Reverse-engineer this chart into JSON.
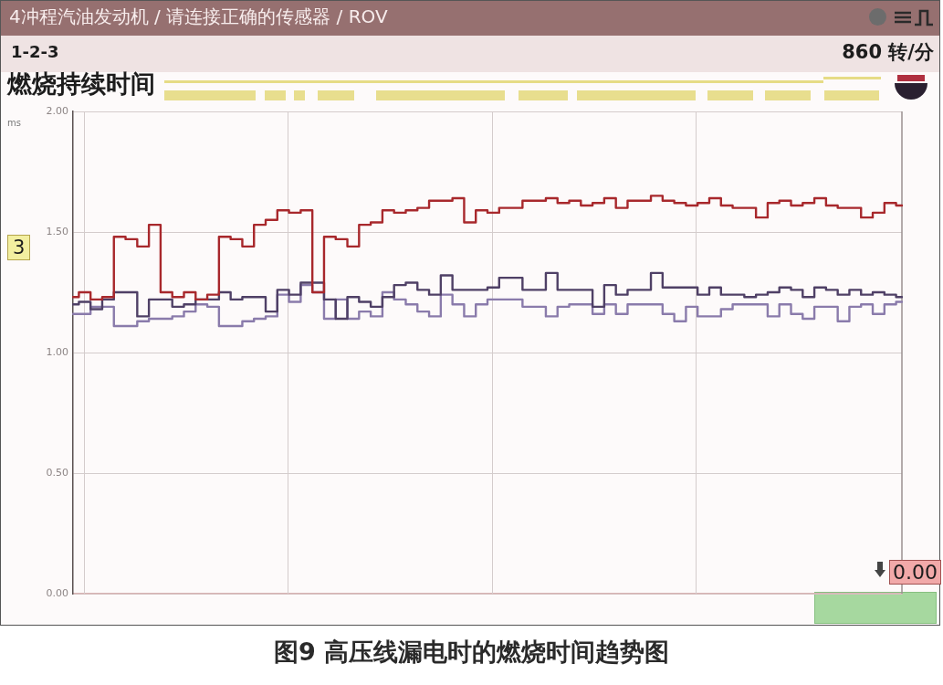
{
  "chart_data": {
    "type": "step",
    "title": "燃烧持续时间",
    "ylabel": "ms",
    "annotations": [
      "4冲程汽油发动机 / 请连接正确的传感器 / ROV",
      "1-2-3",
      "860 转/分",
      "3",
      "0.00",
      "图9 高压线漏电时的燃烧时间趋势图"
    ],
    "categories": [
      null,
      null,
      null,
      null,
      null,
      null,
      null,
      null,
      null,
      null,
      null,
      null,
      null,
      null,
      null,
      null,
      null,
      null,
      null,
      null,
      null,
      null,
      null,
      null,
      null,
      null,
      null,
      null,
      null,
      null,
      null,
      null,
      null,
      null,
      null,
      null,
      null,
      null,
      null,
      null,
      null,
      null,
      null,
      null,
      null,
      null,
      null,
      null,
      null,
      null,
      null,
      null,
      null,
      null,
      null,
      null,
      null,
      null,
      null,
      null,
      null,
      null,
      null,
      null,
      null,
      null,
      null,
      null,
      null,
      null,
      null,
      null
    ],
    "series": [
      {
        "color": "#a8282c",
        "values": [
          1.23,
          1.25,
          1.22,
          1.23,
          1.48,
          1.47,
          1.44,
          1.53,
          1.25,
          1.23,
          1.25,
          1.22,
          1.24,
          1.48,
          1.47,
          1.44,
          1.53,
          1.55,
          1.59,
          1.58,
          1.59,
          1.25,
          1.48,
          1.47,
          1.44,
          1.53,
          1.54,
          1.59,
          1.58,
          1.59,
          1.6,
          1.63,
          1.63,
          1.64,
          1.54,
          1.59,
          1.58,
          1.6,
          1.6,
          1.63,
          1.63,
          1.64,
          1.62,
          1.63,
          1.61,
          1.62,
          1.64,
          1.6,
          1.63,
          1.63,
          1.65,
          1.63,
          1.62,
          1.61,
          1.62,
          1.64,
          1.61,
          1.6,
          1.6,
          1.56,
          1.62,
          1.63,
          1.61,
          1.62,
          1.64,
          1.61,
          1.6,
          1.6,
          1.56,
          1.58,
          1.62,
          1.61
        ]
      },
      {
        "color": "#4f4066",
        "values": [
          1.2,
          1.21,
          1.18,
          1.22,
          1.25,
          1.25,
          1.15,
          1.22,
          1.22,
          1.19,
          1.2,
          1.22,
          1.22,
          1.25,
          1.22,
          1.23,
          1.23,
          1.17,
          1.26,
          1.24,
          1.29,
          1.29,
          1.22,
          1.14,
          1.23,
          1.21,
          1.19,
          1.23,
          1.28,
          1.29,
          1.26,
          1.24,
          1.32,
          1.26,
          1.26,
          1.26,
          1.27,
          1.31,
          1.31,
          1.26,
          1.26,
          1.33,
          1.26,
          1.26,
          1.26,
          1.19,
          1.28,
          1.24,
          1.26,
          1.26,
          1.33,
          1.27,
          1.27,
          1.27,
          1.24,
          1.27,
          1.24,
          1.24,
          1.23,
          1.24,
          1.25,
          1.27,
          1.26,
          1.23,
          1.27,
          1.26,
          1.24,
          1.26,
          1.24,
          1.25,
          1.24,
          1.23
        ]
      },
      {
        "color": "#8a7bab",
        "values": [
          1.16,
          1.16,
          1.19,
          1.19,
          1.11,
          1.11,
          1.13,
          1.14,
          1.14,
          1.15,
          1.17,
          1.2,
          1.19,
          1.11,
          1.11,
          1.13,
          1.14,
          1.15,
          1.24,
          1.21,
          1.28,
          1.25,
          1.14,
          1.22,
          1.14,
          1.17,
          1.15,
          1.25,
          1.22,
          1.2,
          1.17,
          1.15,
          1.24,
          1.2,
          1.15,
          1.2,
          1.22,
          1.22,
          1.22,
          1.19,
          1.19,
          1.15,
          1.19,
          1.2,
          1.2,
          1.16,
          1.2,
          1.16,
          1.2,
          1.2,
          1.2,
          1.16,
          1.13,
          1.19,
          1.15,
          1.15,
          1.18,
          1.2,
          1.2,
          1.2,
          1.15,
          1.2,
          1.16,
          1.14,
          1.19,
          1.19,
          1.13,
          1.19,
          1.2,
          1.16,
          1.2,
          1.21
        ]
      }
    ],
    "ylim": [
      0,
      2
    ],
    "yticks": [
      {
        "value": 0,
        "label": "0.00"
      },
      {
        "value": 0.5,
        "label": "0.50"
      },
      {
        "value": 1,
        "label": "1.00"
      },
      {
        "value": 1.5,
        "label": "1.50"
      },
      {
        "value": 2,
        "label": "2.00"
      }
    ],
    "grid": true
  }
}
